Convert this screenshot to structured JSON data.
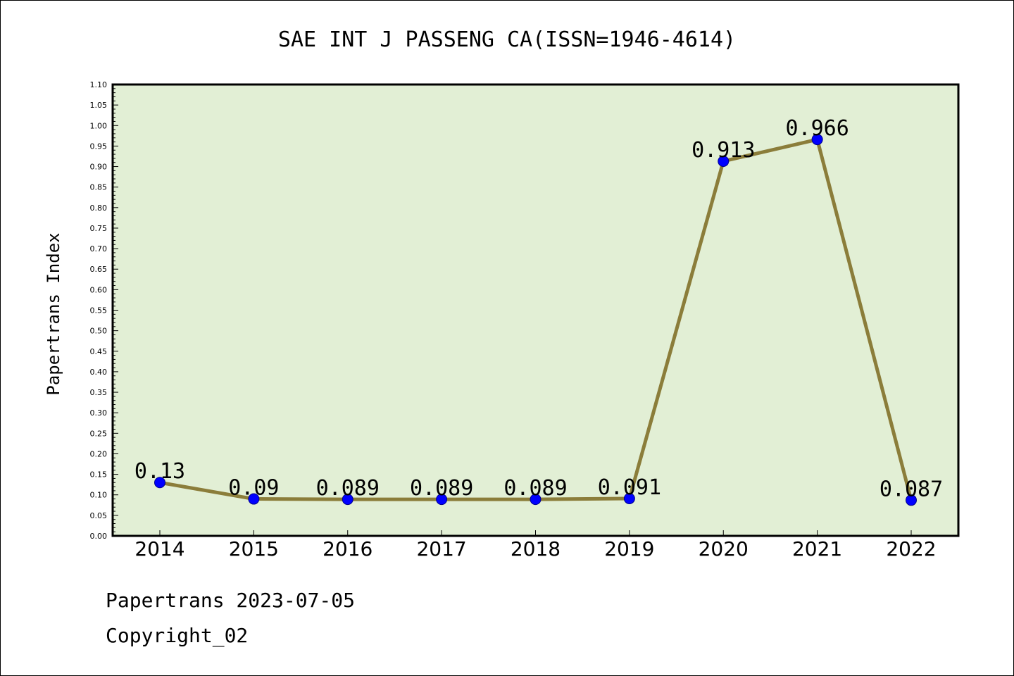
{
  "chart_data": {
    "type": "line",
    "title": "SAE INT J PASSENG CA(ISSN=1946-4614)",
    "xlabel": "",
    "ylabel": "Papertrans Index",
    "categories": [
      "2014",
      "2015",
      "2016",
      "2017",
      "2018",
      "2019",
      "2020",
      "2021",
      "2022"
    ],
    "series": [
      {
        "values": [
          0.13,
          0.09,
          0.089,
          0.089,
          0.089,
          0.091,
          0.913,
          0.966,
          0.087
        ]
      }
    ],
    "data_labels": [
      "0.13",
      "0.09",
      "0.089",
      "0.089",
      "0.089",
      "0.091",
      "0.913",
      "0.966",
      "0.087"
    ],
    "ylim": [
      0,
      1.1
    ],
    "yticks": [
      "0.00",
      "0.05",
      "0.10",
      "0.15",
      "0.20",
      "0.25",
      "0.30",
      "0.35",
      "0.40",
      "0.45",
      "0.50",
      "0.55",
      "0.60",
      "0.65",
      "0.70",
      "0.75",
      "0.80",
      "0.85",
      "0.90",
      "0.95",
      "1.00",
      "1.05",
      "1.10"
    ],
    "grid": false,
    "colors": {
      "line": "#8b7d3a",
      "marker": "#0000ff",
      "plot_background": "#e2efd5"
    }
  },
  "footer": {
    "date_text": "Papertrans 2023-07-05",
    "copyright_text": "Copyright_02"
  }
}
